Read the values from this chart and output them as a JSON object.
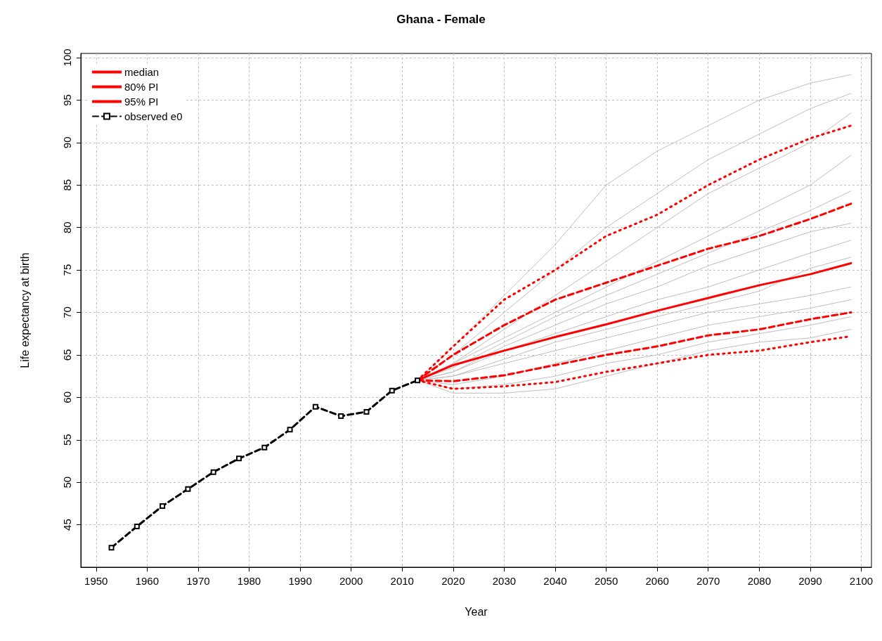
{
  "chart_data": {
    "type": "line",
    "title": "Ghana - Female",
    "xlabel": "Year",
    "ylabel": "Life expectancy at birth",
    "xlim": [
      1947,
      2102
    ],
    "xticks": [
      1950,
      1960,
      1970,
      1980,
      1990,
      2000,
      2010,
      2020,
      2030,
      2040,
      2050,
      2060,
      2070,
      2080,
      2090,
      2100
    ],
    "ylim": [
      40,
      100.5
    ],
    "yticks": [
      45,
      50,
      55,
      60,
      65,
      70,
      75,
      80,
      85,
      90,
      95,
      100
    ],
    "grid": true,
    "legend": "top left",
    "series": [
      {
        "color": "#bebebe",
        "line_style": "solid",
        "marker": "none",
        "x": [
          2013,
          2020,
          2030,
          2040,
          2050,
          2060,
          2070,
          2080,
          2090,
          2098
        ],
        "values": [
          62,
          66,
          72,
          78,
          85,
          89,
          92,
          95,
          97,
          98
        ]
      },
      {
        "color": "#bebebe",
        "line_style": "solid",
        "marker": "none",
        "x": [
          2013,
          2020,
          2030,
          2040,
          2050,
          2060,
          2070,
          2080,
          2090,
          2098
        ],
        "values": [
          62,
          65,
          70,
          75,
          80,
          84,
          88,
          91,
          94,
          95.8
        ]
      },
      {
        "color": "#bebebe",
        "line_style": "solid",
        "marker": "none",
        "x": [
          2013,
          2020,
          2030,
          2040,
          2050,
          2060,
          2070,
          2080,
          2090,
          2098
        ],
        "values": [
          62,
          64,
          68,
          72,
          76,
          80,
          84,
          87,
          90,
          93.5
        ]
      },
      {
        "color": "#bebebe",
        "line_style": "solid",
        "marker": "none",
        "x": [
          2013,
          2020,
          2030,
          2040,
          2050,
          2060,
          2070,
          2080,
          2090,
          2098
        ],
        "values": [
          62,
          64,
          67,
          70,
          73,
          76,
          79,
          82,
          85,
          88.5
        ]
      },
      {
        "color": "#bebebe",
        "line_style": "solid",
        "marker": "none",
        "x": [
          2013,
          2020,
          2030,
          2040,
          2050,
          2060,
          2070,
          2080,
          2090,
          2098
        ],
        "values": [
          62,
          63.5,
          66.5,
          69.5,
          72,
          74.5,
          77,
          79.5,
          82,
          84.3
        ]
      },
      {
        "color": "#bebebe",
        "line_style": "solid",
        "marker": "none",
        "x": [
          2013,
          2020,
          2030,
          2040,
          2050,
          2060,
          2070,
          2080,
          2090,
          2098
        ],
        "values": [
          62,
          63,
          66,
          68.5,
          71,
          73,
          75.5,
          77.5,
          79.5,
          80.5
        ]
      },
      {
        "color": "#bebebe",
        "line_style": "solid",
        "marker": "none",
        "x": [
          2013,
          2020,
          2030,
          2040,
          2050,
          2060,
          2070,
          2080,
          2090,
          2098
        ],
        "values": [
          62,
          63,
          65.5,
          67.5,
          69.5,
          71.5,
          73,
          75,
          77,
          78.5
        ]
      },
      {
        "color": "#bebebe",
        "line_style": "solid",
        "marker": "none",
        "x": [
          2013,
          2020,
          2030,
          2040,
          2050,
          2060,
          2070,
          2080,
          2090,
          2098
        ],
        "values": [
          62,
          62.5,
          64.5,
          66.5,
          68,
          69.5,
          71,
          72.5,
          75.2,
          76.5
        ]
      },
      {
        "color": "#bebebe",
        "line_style": "solid",
        "marker": "none",
        "x": [
          2013,
          2020,
          2030,
          2040,
          2050,
          2060,
          2070,
          2080,
          2090,
          2098
        ],
        "values": [
          62,
          62.5,
          64,
          65.5,
          67,
          68.5,
          70,
          71,
          72,
          73
        ]
      },
      {
        "color": "#bebebe",
        "line_style": "solid",
        "marker": "none",
        "x": [
          2013,
          2020,
          2030,
          2040,
          2050,
          2060,
          2070,
          2080,
          2090,
          2098
        ],
        "values": [
          62,
          61.5,
          62.5,
          64,
          65.5,
          67,
          68.5,
          69.5,
          70.5,
          71.5
        ]
      },
      {
        "color": "#bebebe",
        "line_style": "solid",
        "marker": "none",
        "x": [
          2013,
          2020,
          2030,
          2040,
          2050,
          2060,
          2070,
          2080,
          2090,
          2098
        ],
        "values": [
          62,
          61,
          61.5,
          62.5,
          64,
          65,
          66.5,
          67.5,
          68.5,
          69.5
        ]
      },
      {
        "color": "#bebebe",
        "line_style": "solid",
        "marker": "none",
        "x": [
          2013,
          2020,
          2030,
          2040,
          2050,
          2060,
          2070,
          2080,
          2090,
          2098
        ],
        "values": [
          62,
          60.5,
          60.5,
          61,
          62.5,
          64,
          65.5,
          66.5,
          67,
          68
        ]
      },
      {
        "name": "median",
        "color": "#ff0000",
        "line_style": "solid",
        "marker": "none",
        "x": [
          2013,
          2020,
          2030,
          2040,
          2050,
          2060,
          2070,
          2080,
          2090,
          2098
        ],
        "values": [
          62,
          63.8,
          65.5,
          67.1,
          68.6,
          70.2,
          71.7,
          73.2,
          74.5,
          75.8
        ]
      },
      {
        "name": "80% PI",
        "color": "#ff0000",
        "line_style": "dashed",
        "marker": "none",
        "x": [
          2013,
          2020,
          2030,
          2040,
          2050,
          2060,
          2070,
          2080,
          2090,
          2098
        ],
        "values": [
          62,
          65,
          68.5,
          71.5,
          73.5,
          75.5,
          77.5,
          79,
          81,
          82.8
        ]
      },
      {
        "color": "#ff0000",
        "line_style": "dashed",
        "marker": "none",
        "x": [
          2013,
          2020,
          2030,
          2040,
          2050,
          2060,
          2070,
          2080,
          2090,
          2098
        ],
        "values": [
          62,
          61.9,
          62.6,
          63.8,
          65,
          66,
          67.3,
          68,
          69.2,
          70
        ]
      },
      {
        "name": "95% PI",
        "color": "#ff0000",
        "line_style": "dotted",
        "marker": "none",
        "x": [
          2013,
          2020,
          2030,
          2040,
          2050,
          2060,
          2070,
          2080,
          2090,
          2098
        ],
        "values": [
          62,
          66,
          71.5,
          75,
          79,
          81.5,
          85,
          88,
          90.5,
          92
        ]
      },
      {
        "color": "#ff0000",
        "line_style": "dotted",
        "marker": "none",
        "x": [
          2013,
          2020,
          2030,
          2040,
          2050,
          2060,
          2070,
          2080,
          2090,
          2098
        ],
        "values": [
          62,
          61,
          61.3,
          61.8,
          63,
          64,
          65,
          65.5,
          66.5,
          67.2
        ]
      },
      {
        "name": "observed e0",
        "color": "#000000",
        "line_style": "dashed",
        "marker": "square",
        "x": [
          1953,
          1958,
          1963,
          1968,
          1973,
          1978,
          1983,
          1988,
          1993,
          1998,
          2003,
          2008,
          2013
        ],
        "values": [
          42.3,
          44.8,
          47.2,
          49.2,
          51.2,
          52.8,
          54.1,
          56.2,
          58.9,
          57.8,
          58.3,
          60.8,
          62.0
        ]
      }
    ]
  }
}
